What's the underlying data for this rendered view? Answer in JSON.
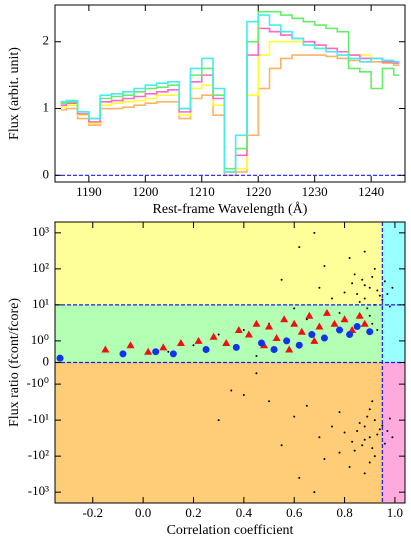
{
  "chart_data": [
    {
      "type": "line",
      "step": "mid",
      "xlabel": "Rest-frame Wavelength (Å)",
      "ylabel": "Flux (arbit. unit)",
      "xlim": [
        1184,
        1246
      ],
      "ylim": [
        -0.1,
        2.55
      ],
      "xticks": [
        1190,
        1200,
        1210,
        1220,
        1230,
        1240
      ],
      "yticks": [
        0,
        1,
        2
      ],
      "hlines": [
        0
      ],
      "line_color": "#1a1aff",
      "x": [
        1185,
        1187,
        1189,
        1191,
        1193,
        1195,
        1197,
        1199,
        1201,
        1203,
        1205,
        1207,
        1209,
        1211,
        1213,
        1215,
        1217,
        1219,
        1221,
        1223,
        1225,
        1227,
        1229,
        1231,
        1233,
        1235,
        1237,
        1239,
        1241,
        1243,
        1245
      ],
      "series": [
        {
          "color": "#ffb366",
          "values": [
            0.98,
            1.0,
            0.85,
            0.75,
            1.0,
            1.0,
            1.02,
            1.05,
            1.08,
            1.1,
            1.1,
            0.85,
            1.15,
            1.2,
            0.9,
            0.0,
            0.05,
            0.6,
            1.3,
            1.6,
            1.75,
            1.8,
            1.8,
            1.8,
            1.78,
            1.75,
            1.72,
            1.7,
            1.7,
            1.68,
            1.65
          ]
        },
        {
          "color": "#ffff33",
          "values": [
            1.02,
            1.05,
            0.9,
            0.78,
            1.05,
            1.08,
            1.1,
            1.12,
            1.15,
            1.2,
            1.2,
            0.9,
            1.3,
            1.35,
            1.05,
            0.05,
            0.1,
            1.2,
            1.8,
            2.0,
            2.0,
            2.0,
            1.95,
            1.9,
            1.9,
            1.85,
            1.8,
            1.8,
            1.75,
            1.72,
            1.7
          ]
        },
        {
          "color": "#ff66cc",
          "values": [
            1.05,
            1.08,
            0.92,
            0.8,
            1.1,
            1.12,
            1.15,
            1.18,
            1.22,
            1.25,
            1.28,
            0.95,
            1.4,
            1.5,
            1.15,
            0.05,
            0.3,
            1.8,
            2.2,
            2.15,
            2.1,
            2.05,
            2.0,
            1.95,
            1.9,
            1.85,
            1.8,
            1.75,
            1.75,
            1.7,
            1.68
          ]
        },
        {
          "color": "#66ee66",
          "values": [
            1.08,
            1.1,
            0.95,
            0.85,
            1.15,
            1.18,
            1.2,
            1.25,
            1.3,
            1.32,
            1.35,
            1.0,
            1.5,
            1.6,
            1.2,
            0.1,
            0.4,
            2.0,
            2.45,
            2.45,
            2.4,
            2.35,
            2.3,
            2.25,
            2.2,
            2.15,
            1.6,
            1.55,
            1.3,
            1.6,
            1.5
          ]
        },
        {
          "color": "#44eeee",
          "values": [
            1.1,
            1.12,
            0.95,
            0.85,
            1.2,
            1.22,
            1.25,
            1.3,
            1.35,
            1.38,
            1.4,
            1.0,
            1.6,
            1.75,
            1.3,
            0.05,
            0.6,
            2.3,
            2.4,
            2.25,
            2.15,
            2.05,
            1.95,
            1.9,
            1.85,
            1.8,
            1.75,
            1.7,
            1.75,
            1.72,
            1.7
          ]
        }
      ]
    },
    {
      "type": "scatter",
      "yscale": "symlog",
      "xlabel": "Correlation coefficient",
      "ylabel": "Flux ratio (fcont/fcore)",
      "xlim": [
        -0.35,
        1.04
      ],
      "ylim": [
        -2000,
        2000
      ],
      "xticks": [
        -0.2,
        {
          "value": 0,
          "label": "0.0"
        },
        0.2,
        0.4,
        0.6,
        0.8,
        {
          "value": 1,
          "label": "1.0"
        }
      ],
      "yticks": [
        {
          "value": 1000,
          "label": "10³"
        },
        {
          "value": 100,
          "label": "10²"
        },
        {
          "value": 10,
          "label": "10¹"
        },
        {
          "value": 1,
          "label": "10⁰"
        },
        0,
        {
          "value": -1,
          "label": "-10⁰"
        },
        {
          "value": -10,
          "label": "-10¹"
        },
        {
          "value": -100,
          "label": "-10²"
        },
        {
          "value": -1000,
          "label": "-10³"
        }
      ],
      "hlines": [
        10,
        0
      ],
      "vline": 0.95,
      "line_color": "#1a1aff",
      "region_colors": {
        "top": "#ffff99",
        "middle": "#b3ffb3",
        "bottom": "#ffcc77",
        "right_top": "#99ffff",
        "right_bottom": "#ffaadd"
      },
      "series": [
        {
          "color": "#000000",
          "marker": "dot",
          "x": [
            0.85,
            0.88,
            0.9,
            0.92,
            0.87,
            0.93,
            0.89,
            0.91,
            0.86,
            0.94,
            0.83,
            0.9,
            0.92,
            0.88,
            0.8,
            0.95,
            0.97,
            0.98,
            0.96,
            0.99,
            0.75,
            0.78,
            0.7,
            0.82,
            0.6,
            0.65,
            0.5,
            0.55,
            0.4,
            0.3,
            0.2,
            0.88,
            0.91,
            0.93,
            0.72,
            0.68,
            0.1,
            0.45,
            0.62,
            0.84,
            0.85,
            0.88,
            0.9,
            0.92,
            0.87,
            0.93,
            0.89,
            0.91,
            0.86,
            0.94,
            0.83,
            0.9,
            0.92,
            0.88,
            0.8,
            0.95,
            0.97,
            0.98,
            0.96,
            0.99,
            0.75,
            0.78,
            0.7,
            0.82,
            0.6,
            0.65,
            0.5,
            0.55,
            0.4,
            0.3,
            0.88,
            0.91,
            0.72,
            0.68,
            0.45,
            0.84,
            0.35,
            0.62,
            0.9,
            0.78
          ],
          "values": [
            20,
            15,
            30,
            10,
            50,
            25,
            8,
            60,
            12,
            18,
            40,
            5,
            100,
            35,
            22,
            14,
            20,
            9,
            45,
            30,
            15,
            6,
            30,
            200,
            8,
            4,
            3,
            50,
            2,
            1.5,
            0.8,
            300,
            3,
            2,
            120,
            1000,
            0.5,
            0.3,
            400,
            70,
            -20,
            -15,
            -30,
            -10,
            -50,
            -25,
            -8,
            -60,
            -12,
            -18,
            -40,
            -5,
            -100,
            -35,
            -22,
            -14,
            -20,
            -9,
            -45,
            -30,
            -15,
            -6,
            -30,
            -200,
            -8,
            -4,
            -3,
            -50,
            -2,
            -10,
            -300,
            -3,
            -120,
            -1000,
            -0.5,
            -70,
            -1.5,
            -400,
            -150,
            -80
          ]
        },
        {
          "color": "#ee1111",
          "marker": "triangle",
          "x": [
            -0.15,
            -0.05,
            0.02,
            0.08,
            0.15,
            0.22,
            0.28,
            0.33,
            0.38,
            0.42,
            0.45,
            0.5,
            0.53,
            0.56,
            0.6,
            0.63,
            0.66,
            0.7,
            0.73,
            0.76,
            0.8,
            0.83,
            0.86,
            0.88,
            0.48,
            0.58,
            0.68
          ],
          "values": [
            0.6,
            0.8,
            0.5,
            0.7,
            0.9,
            1,
            1.3,
            0.9,
            2,
            1.5,
            3,
            2.5,
            1.2,
            4,
            3,
            1.8,
            5,
            2.5,
            6,
            3,
            4,
            2,
            5,
            3,
            0.8,
            0.6,
            1
          ]
        },
        {
          "color": "#1133ee",
          "marker": "circle",
          "x": [
            -0.33,
            -0.08,
            0.05,
            0.12,
            0.25,
            0.37,
            0.47,
            0.52,
            0.57,
            0.62,
            0.67,
            0.72,
            0.78,
            0.82,
            0.85,
            0.9
          ],
          "values": [
            0.2,
            0.4,
            0.5,
            0.4,
            0.6,
            0.7,
            0.9,
            0.6,
            1,
            0.8,
            1.5,
            1.2,
            2,
            1.5,
            2.5,
            1.8
          ]
        }
      ]
    }
  ]
}
